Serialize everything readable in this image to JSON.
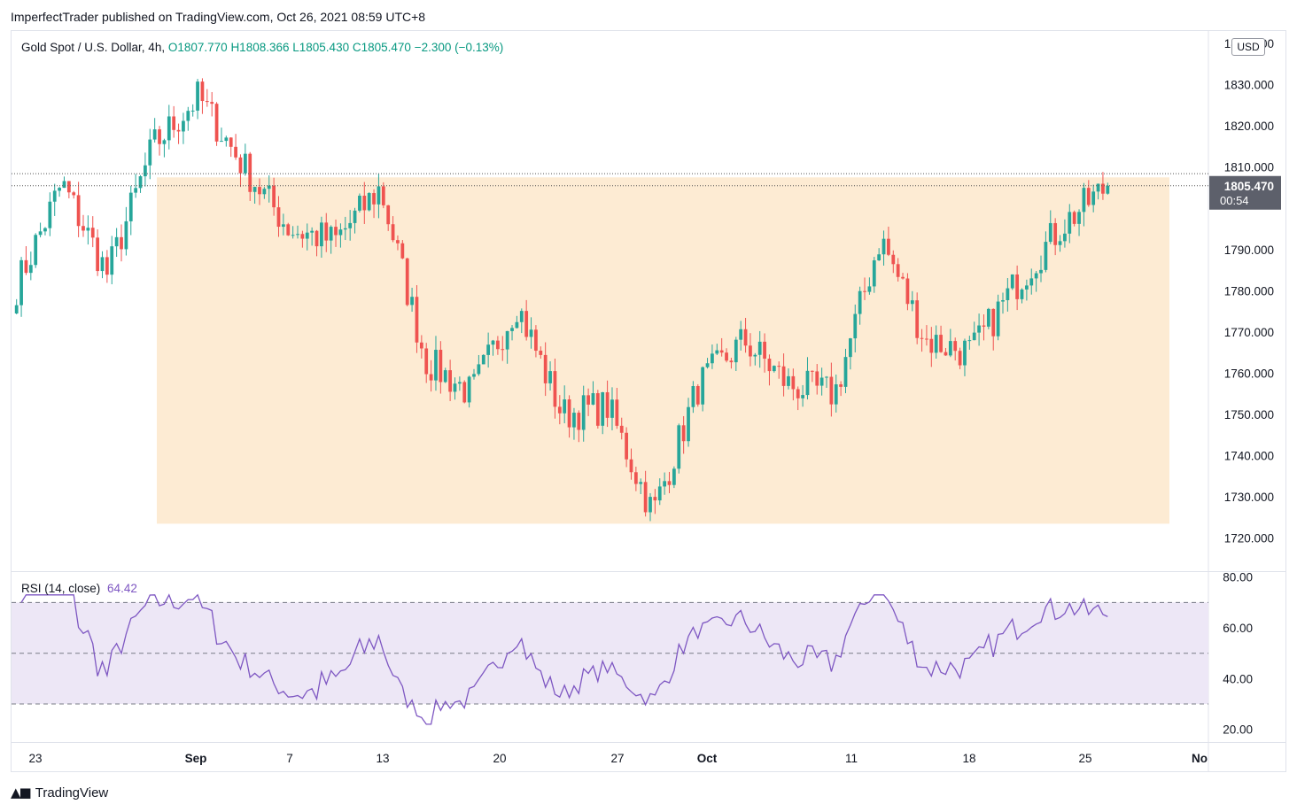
{
  "header": {
    "publisher_line": "ImperfectTrader published on TradingView.com, Oct 26, 2021 08:59 UTC+8"
  },
  "legend": {
    "symbol": "Gold Spot / U.S. Dollar, 4h,",
    "open": "O1807.770",
    "high": "H1808.366",
    "low": "L1805.430",
    "close": "C1805.470",
    "change": "−2.300 (−0.13%)"
  },
  "rsi_legend": {
    "label": "RSI (14, close)",
    "value": "64.42"
  },
  "price_scale": {
    "currency": "USD",
    "last_price": "1805.470",
    "countdown": "00:54"
  },
  "footer": {
    "brand": "TradingView"
  },
  "colors": {
    "up": "#26a69a",
    "down": "#ef5350",
    "zone": "#fdebd3",
    "rsi_line": "#7e57c2",
    "rsi_band": "#ede7f6",
    "last_price_bg": "#5d606b"
  },
  "chart_data": [
    {
      "type": "candlestick",
      "timeframe": "4h",
      "ylim": [
        1712,
        1843
      ],
      "y_ticks": [
        1720,
        1730,
        1740,
        1750,
        1760,
        1770,
        1780,
        1790,
        1810,
        1820,
        1830,
        1840
      ],
      "y_tick_labels": [
        "1720.000",
        "1730.000",
        "1740.000",
        "1750.000",
        "1760.000",
        "1770.000",
        "1780.000",
        "1790.000",
        "1810.000",
        "1820.000",
        "1830.000",
        "1840.000"
      ],
      "x_ticks": [
        {
          "label": "23",
          "bold": false
        },
        {
          "label": "Sep",
          "bold": true
        },
        {
          "label": "7",
          "bold": false
        },
        {
          "label": "13",
          "bold": false
        },
        {
          "label": "20",
          "bold": false
        },
        {
          "label": "27",
          "bold": false
        },
        {
          "label": "Oct",
          "bold": true
        },
        {
          "label": "11",
          "bold": false
        },
        {
          "label": "18",
          "bold": false
        },
        {
          "label": "25",
          "bold": false
        },
        {
          "label": "No",
          "bold": true
        }
      ],
      "zone": {
        "top": 1807.5,
        "bottom": 1723.5
      },
      "last_close": 1805.47,
      "key_points": [
        {
          "label": "Aug 20",
          "close": 1781
        },
        {
          "label": "Aug 24",
          "close": 1806
        },
        {
          "label": "Aug 27",
          "close": 1784
        },
        {
          "label": "Aug 30",
          "close": 1815
        },
        {
          "label": "Sep 3",
          "close": 1827
        },
        {
          "label": "Sep 7",
          "close": 1810
        },
        {
          "label": "Sep 8",
          "close": 1795
        },
        {
          "label": "Sep 13",
          "close": 1792
        },
        {
          "label": "Sep 15",
          "close": 1805
        },
        {
          "label": "Sep 17",
          "close": 1763
        },
        {
          "label": "Sep 20",
          "close": 1755
        },
        {
          "label": "Sep 22",
          "close": 1777
        },
        {
          "label": "Sep 24",
          "close": 1750
        },
        {
          "label": "Sep 27",
          "close": 1752
        },
        {
          "label": "Sep 29",
          "close": 1726
        },
        {
          "label": "Sep 30",
          "close": 1757
        },
        {
          "label": "Oct 4",
          "close": 1768
        },
        {
          "label": "Oct 6",
          "close": 1757
        },
        {
          "label": "Oct 8",
          "close": 1755
        },
        {
          "label": "Oct 13",
          "close": 1793
        },
        {
          "label": "Oct 15",
          "close": 1768
        },
        {
          "label": "Oct 18",
          "close": 1765
        },
        {
          "label": "Oct 21",
          "close": 1782
        },
        {
          "label": "Oct 22",
          "close": 1796
        },
        {
          "label": "Oct 25",
          "close": 1805.47
        }
      ]
    },
    {
      "type": "line",
      "name": "RSI (14, close)",
      "ylim": [
        15,
        82
      ],
      "y_ticks": [
        20,
        40,
        60,
        80
      ],
      "y_tick_labels": [
        "20.00",
        "40.00",
        "60.00",
        "80.00"
      ],
      "bands": {
        "upper": 70,
        "middle": 50,
        "lower": 30
      },
      "last_value": 64.42
    }
  ]
}
